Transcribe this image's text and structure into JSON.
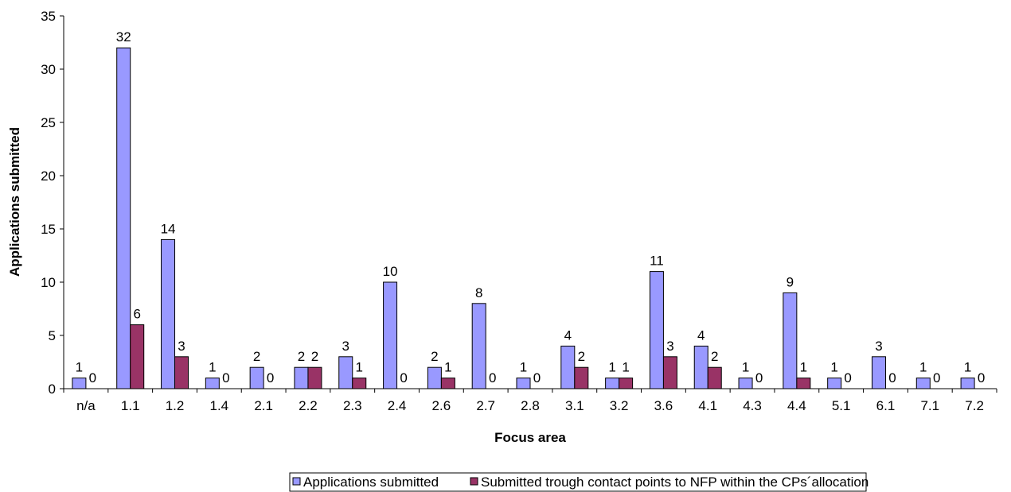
{
  "chart_data": {
    "type": "bar",
    "xlabel": "Focus area",
    "ylabel": "Applications submitted",
    "ylim": [
      0,
      35
    ],
    "yticks": [
      0,
      5,
      10,
      15,
      20,
      25,
      30,
      35
    ],
    "grid": false,
    "legend_position": "bottom",
    "categories": [
      "n/a",
      "1.1",
      "1.2",
      "1.4",
      "2.1",
      "2.2",
      "2.3",
      "2.4",
      "2.6",
      "2.7",
      "2.8",
      "3.1",
      "3.2",
      "3.6",
      "4.1",
      "4.3",
      "4.4",
      "5.1",
      "6.1",
      "7.1",
      "7.2"
    ],
    "series": [
      {
        "name": "Applications submitted",
        "color": "#9999FF",
        "values": [
          1,
          32,
          14,
          1,
          2,
          2,
          3,
          10,
          2,
          8,
          1,
          4,
          1,
          11,
          4,
          1,
          9,
          1,
          3,
          1,
          1
        ]
      },
      {
        "name": "Submitted trough contact points to NFP within the CPs´allocation",
        "color": "#993366",
        "values": [
          0,
          6,
          3,
          0,
          0,
          2,
          1,
          0,
          1,
          0,
          0,
          2,
          1,
          3,
          2,
          0,
          1,
          0,
          0,
          0,
          0
        ]
      }
    ]
  }
}
